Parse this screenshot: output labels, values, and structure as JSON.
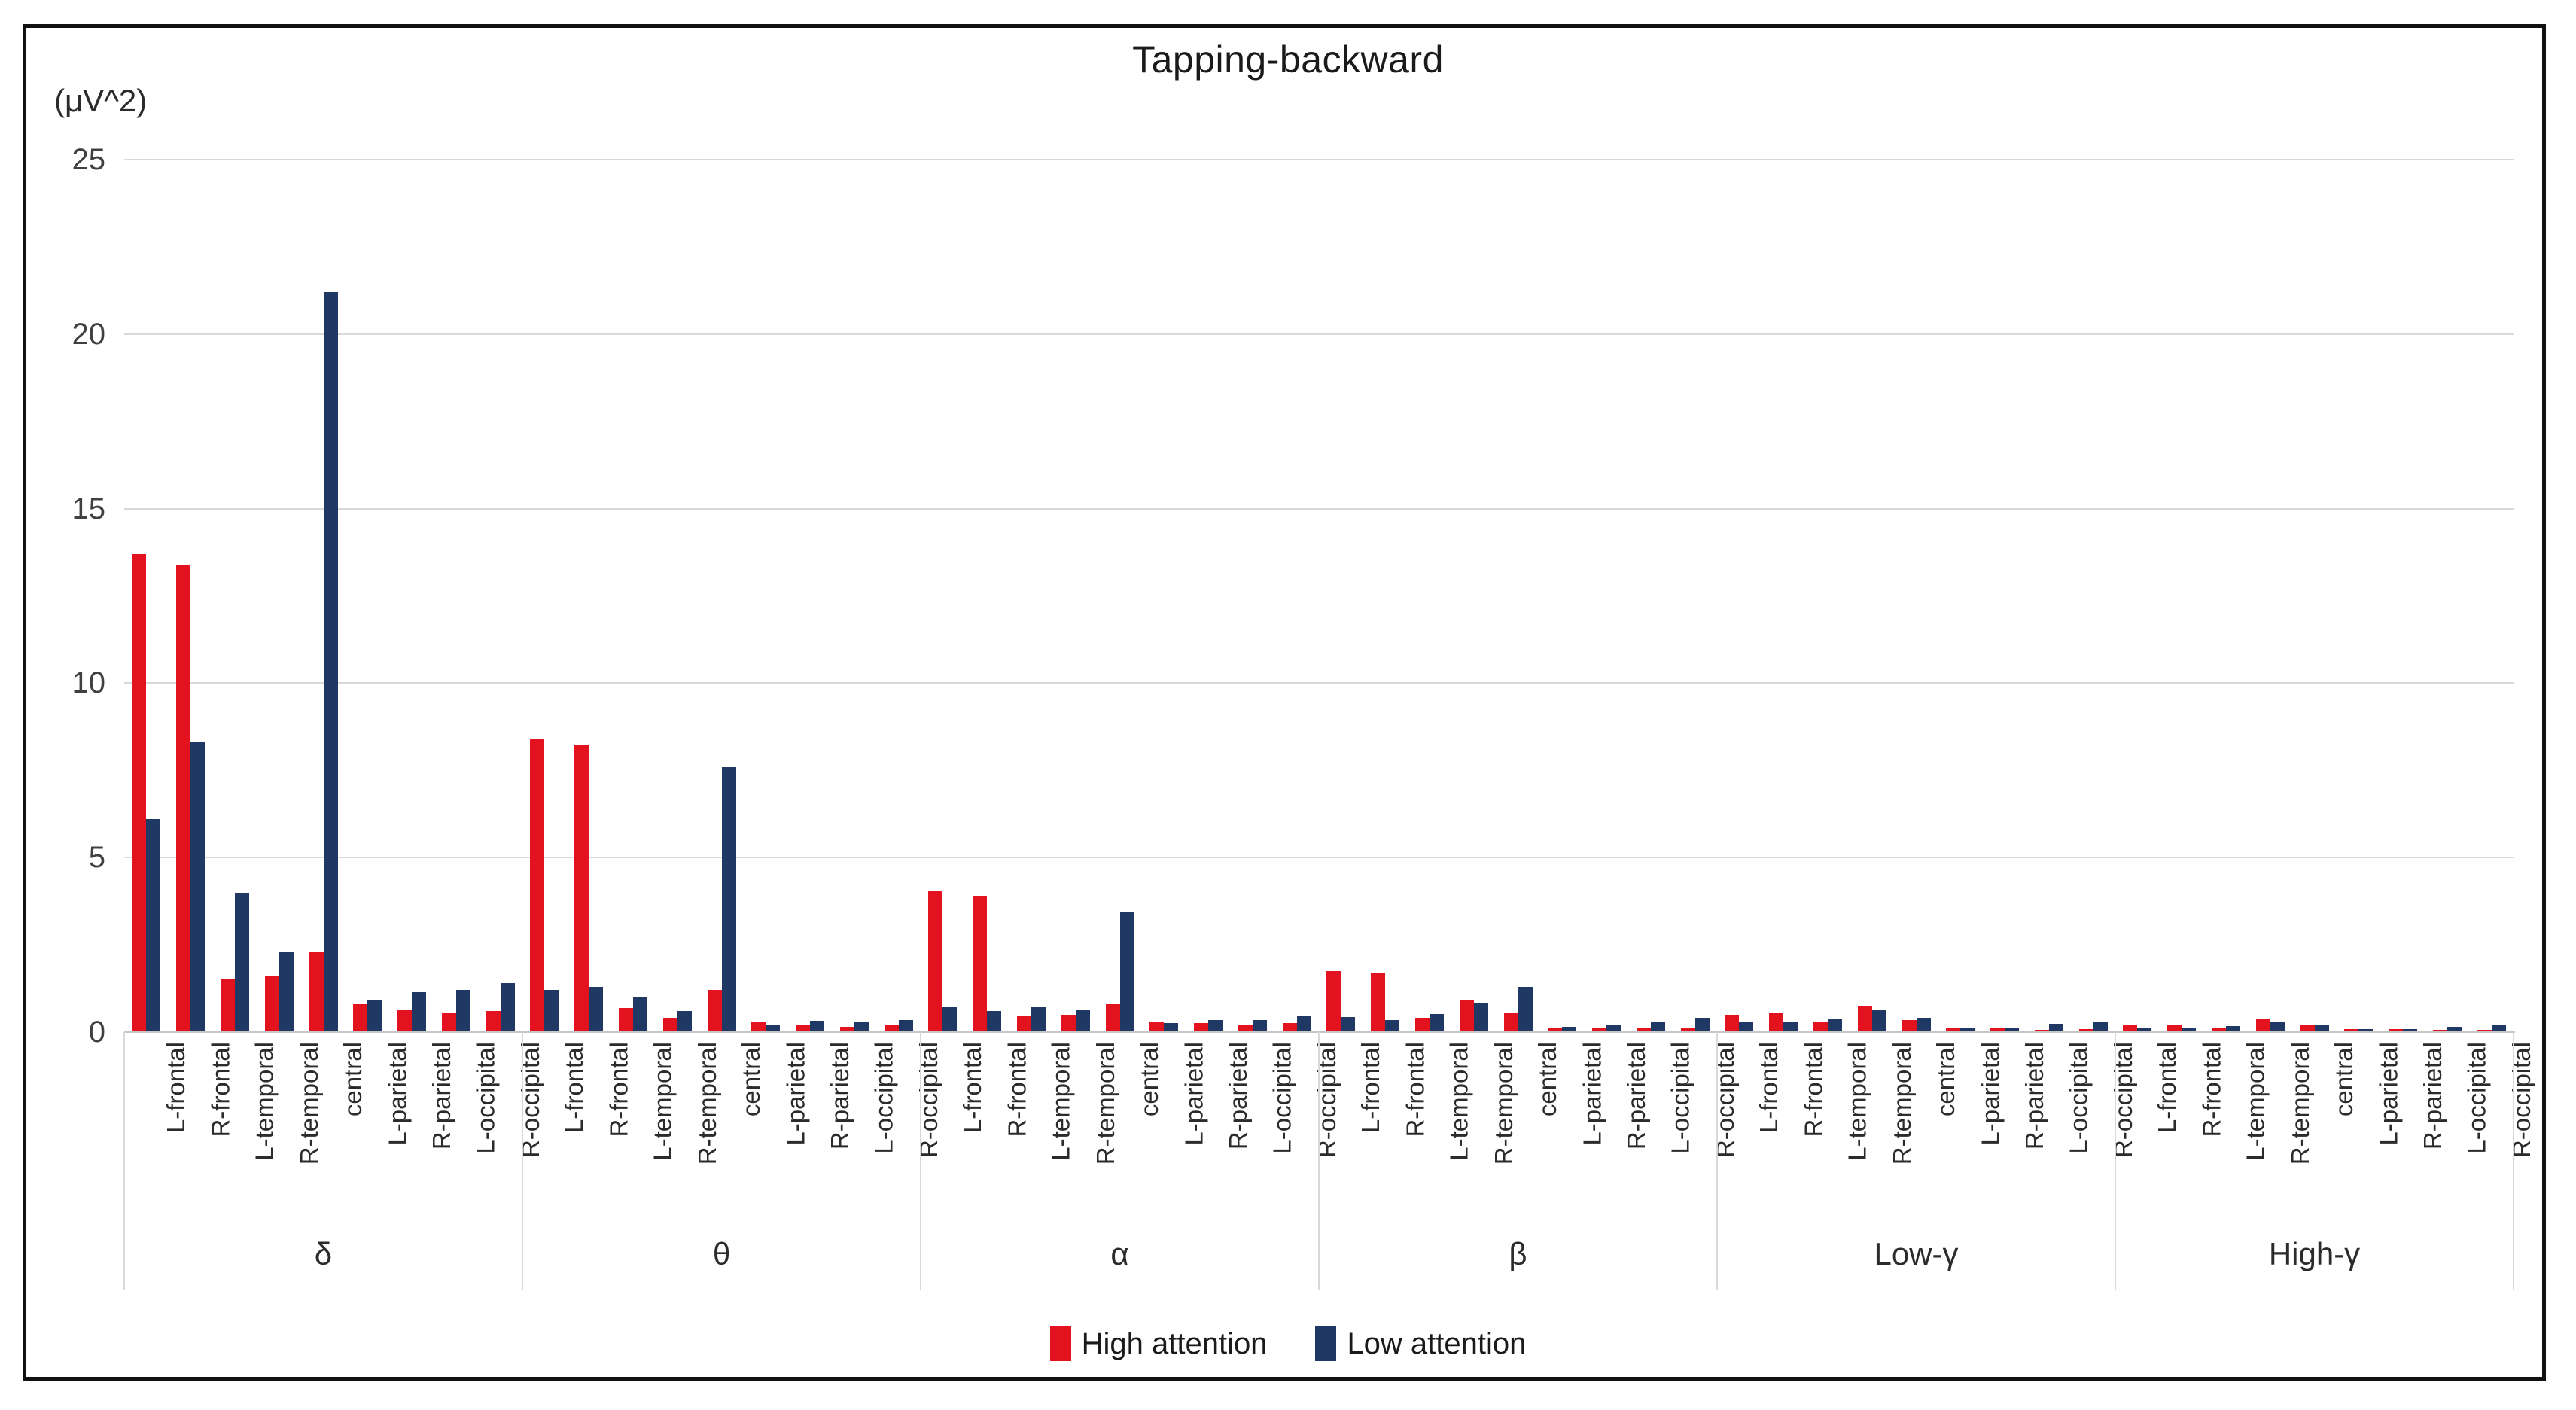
{
  "header": {
    "title": "Tapping-backward"
  },
  "y_axis": {
    "unit_label": "(μV^2)",
    "ticks": [
      0,
      5,
      10,
      15,
      20,
      25
    ]
  },
  "legend": {
    "high_label": "High attention",
    "low_label": "Low attention",
    "high_color": "#e2131e",
    "low_color": "#1f3864"
  },
  "chart_data": {
    "type": "bar",
    "title": "Tapping-backward",
    "ylabel": "(μV^2)",
    "xlabel": "",
    "ylim": [
      0,
      25
    ],
    "yticks": [
      0,
      5,
      10,
      15,
      20,
      25
    ],
    "grid": true,
    "legend_position": "bottom",
    "categories": [
      "L-frontal",
      "R-frontal",
      "L-temporal",
      "R-temporal",
      "central",
      "L-parietal",
      "R-parietal",
      "L-occipital",
      "R-occipital"
    ],
    "series": [
      {
        "name": "High attention",
        "key": "high",
        "color": "#e2131e"
      },
      {
        "name": "Low attention",
        "key": "low",
        "color": "#1f3864"
      }
    ],
    "groups": [
      {
        "label": "δ",
        "high": [
          13.7,
          13.4,
          1.5,
          1.6,
          2.3,
          0.8,
          0.65,
          0.55,
          0.6
        ],
        "low": [
          6.1,
          8.3,
          4.0,
          2.3,
          21.2,
          0.9,
          1.15,
          1.2,
          1.4
        ]
      },
      {
        "label": "θ",
        "high": [
          8.4,
          8.25,
          0.7,
          0.4,
          1.2,
          0.27,
          0.21,
          0.15,
          0.22
        ],
        "low": [
          1.2,
          1.3,
          1.0,
          0.6,
          7.6,
          0.19,
          0.32,
          0.31,
          0.35
        ]
      },
      {
        "label": "α",
        "high": [
          4.05,
          3.9,
          0.48,
          0.49,
          0.8,
          0.27,
          0.25,
          0.2,
          0.25
        ],
        "low": [
          0.72,
          0.6,
          0.72,
          0.62,
          3.45,
          0.25,
          0.34,
          0.35,
          0.45
        ]
      },
      {
        "label": "β",
        "high": [
          1.75,
          1.7,
          0.42,
          0.91,
          0.54,
          0.14,
          0.14,
          0.12,
          0.12
        ],
        "low": [
          0.43,
          0.35,
          0.51,
          0.81,
          1.3,
          0.15,
          0.22,
          0.28,
          0.4
        ]
      },
      {
        "label": "Low-γ",
        "high": [
          0.5,
          0.55,
          0.3,
          0.73,
          0.35,
          0.13,
          0.12,
          0.07,
          0.08
        ],
        "low": [
          0.3,
          0.28,
          0.36,
          0.64,
          0.41,
          0.14,
          0.14,
          0.23,
          0.3
        ]
      },
      {
        "label": "High-γ",
        "high": [
          0.2,
          0.2,
          0.1,
          0.38,
          0.22,
          0.09,
          0.09,
          0.07,
          0.06
        ],
        "low": [
          0.12,
          0.12,
          0.18,
          0.3,
          0.19,
          0.08,
          0.08,
          0.16,
          0.22
        ]
      }
    ]
  }
}
